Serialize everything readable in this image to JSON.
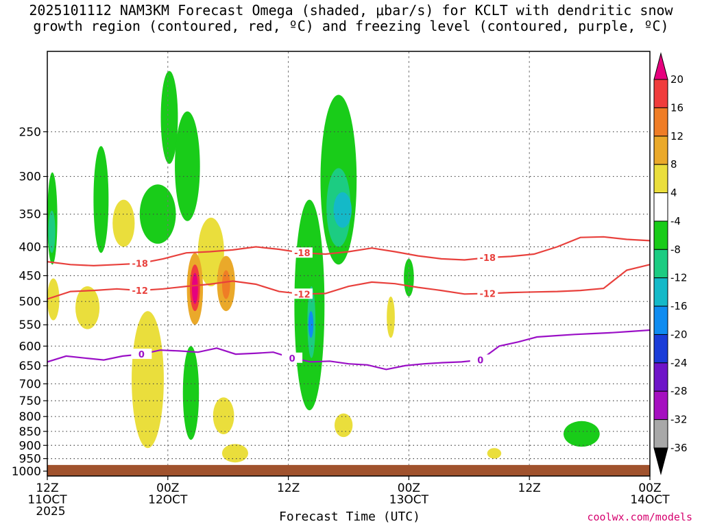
{
  "title": {
    "line1": "2025101112 NAM3KM Forecast Omega (shaded, μbar/s) for KCLT with dendritic snow",
    "line2": "growth region (contoured, red, ºC) and freezing level (contoured, purple, ºC)"
  },
  "credit": "coolwx.com/models",
  "chart_data": {
    "type": "heatmap",
    "title": "2025101112 NAM3KM Forecast Omega (shaded, μbar/s) for KCLT with dendritic snow growth region (contoured, red, ºC) and freezing level (contoured, purple, ºC)",
    "xlabel": "Forecast Time (UTC)",
    "ylabel": "",
    "x_units": "forecast hour",
    "xlim": [
      0,
      60
    ],
    "y_units": "hPa",
    "ylim": [
      1020,
      180
    ],
    "y_scale": "log",
    "y_ticks": [
      250,
      300,
      350,
      400,
      450,
      500,
      550,
      600,
      650,
      700,
      750,
      800,
      850,
      900,
      950,
      1000
    ],
    "x_ticks": [
      {
        "hour": 0,
        "label1": "12Z",
        "label2": "11OCT",
        "label3": "2025"
      },
      {
        "hour": 12,
        "label1": "00Z",
        "label2": "12OCT",
        "label3": ""
      },
      {
        "hour": 24,
        "label1": "12Z",
        "label2": "",
        "label3": ""
      },
      {
        "hour": 36,
        "label1": "00Z",
        "label2": "13OCT",
        "label3": ""
      },
      {
        "hour": 48,
        "label1": "12Z",
        "label2": "",
        "label3": ""
      },
      {
        "hour": 60,
        "label1": "00Z",
        "label2": "14OCT",
        "label3": ""
      }
    ],
    "grid": true,
    "colorbar": {
      "placement": "right",
      "labels": [
        "20",
        "16",
        "12",
        "8",
        "4",
        "-4",
        "-8",
        "-12",
        "-16",
        "-20",
        "-24",
        "-28",
        "-32",
        "-36"
      ],
      "bins": [
        {
          "min": 20,
          "max": null,
          "color": "#e6007e"
        },
        {
          "min": 16,
          "max": 20,
          "color": "#f03c3c"
        },
        {
          "min": 12,
          "max": 16,
          "color": "#ef7d26"
        },
        {
          "min": 8,
          "max": 12,
          "color": "#eaa92a"
        },
        {
          "min": 4,
          "max": 8,
          "color": "#eade3c"
        },
        {
          "min": -4,
          "max": 4,
          "color": "#ffffff"
        },
        {
          "min": -8,
          "max": -4,
          "color": "#19cc19"
        },
        {
          "min": -12,
          "max": -8,
          "color": "#1ccc82"
        },
        {
          "min": -16,
          "max": -12,
          "color": "#14b9c8"
        },
        {
          "min": -20,
          "max": -16,
          "color": "#0f8cf0"
        },
        {
          "min": -24,
          "max": -20,
          "color": "#1a3cd8"
        },
        {
          "min": -28,
          "max": -24,
          "color": "#6e14c8"
        },
        {
          "min": -32,
          "max": -28,
          "color": "#a50fc0"
        },
        {
          "min": -36,
          "max": -32,
          "color": "#a8a8a8"
        },
        {
          "min": null,
          "max": -36,
          "color": "#000000"
        }
      ]
    },
    "shaded_regions": [
      {
        "t0": 0.0,
        "t1": 1.0,
        "p_top": 295,
        "p_bot": 430,
        "omega": -8
      },
      {
        "t0": 0.1,
        "t1": 0.8,
        "p_top": 345,
        "p_bot": 410,
        "omega": -12
      },
      {
        "t0": 0.0,
        "t1": 1.2,
        "p_top": 455,
        "p_bot": 540,
        "omega": 6
      },
      {
        "t0": 2.8,
        "t1": 5.2,
        "p_top": 470,
        "p_bot": 560,
        "omega": 6
      },
      {
        "t0": 4.6,
        "t1": 6.1,
        "p_top": 265,
        "p_bot": 410,
        "omega": -6
      },
      {
        "t0": 6.5,
        "t1": 8.7,
        "p_top": 330,
        "p_bot": 400,
        "omega": 6
      },
      {
        "t0": 9.2,
        "t1": 12.8,
        "p_top": 310,
        "p_bot": 395,
        "omega": -6
      },
      {
        "t0": 11.3,
        "t1": 13.0,
        "p_top": 195,
        "p_bot": 285,
        "omega": -6
      },
      {
        "t0": 12.7,
        "t1": 15.2,
        "p_top": 230,
        "p_bot": 360,
        "omega": -6
      },
      {
        "t0": 15.0,
        "t1": 17.6,
        "p_top": 355,
        "p_bot": 470,
        "omega": 6
      },
      {
        "t0": 13.9,
        "t1": 15.5,
        "p_top": 410,
        "p_bot": 550,
        "omega": 8
      },
      {
        "t0": 14.2,
        "t1": 15.2,
        "p_top": 430,
        "p_bot": 520,
        "omega": 16
      },
      {
        "t0": 14.4,
        "t1": 15.0,
        "p_top": 445,
        "p_bot": 505,
        "omega": 22
      },
      {
        "t0": 16.9,
        "t1": 18.7,
        "p_top": 415,
        "p_bot": 520,
        "omega": 8
      },
      {
        "t0": 17.4,
        "t1": 18.2,
        "p_top": 440,
        "p_bot": 495,
        "omega": 13
      },
      {
        "t0": 8.4,
        "t1": 11.6,
        "p_top": 520,
        "p_bot": 910,
        "omega": 6
      },
      {
        "t0": 13.5,
        "t1": 15.1,
        "p_top": 600,
        "p_bot": 880,
        "omega": -6
      },
      {
        "t0": 16.5,
        "t1": 18.6,
        "p_top": 740,
        "p_bot": 860,
        "omega": 6
      },
      {
        "t0": 17.4,
        "t1": 20.0,
        "p_top": 895,
        "p_bot": 965,
        "omega": 6
      },
      {
        "t0": 25.7,
        "t1": 27.1,
        "p_top": 410,
        "p_bot": 560,
        "omega": -6
      },
      {
        "t0": 27.2,
        "t1": 30.8,
        "p_top": 215,
        "p_bot": 430,
        "omega": -6
      },
      {
        "t0": 24.6,
        "t1": 27.6,
        "p_top": 330,
        "p_bot": 780,
        "omega": -6
      },
      {
        "t0": 25.9,
        "t1": 26.7,
        "p_top": 470,
        "p_bot": 630,
        "omega": -12
      },
      {
        "t0": 26.0,
        "t1": 26.5,
        "p_top": 520,
        "p_bot": 580,
        "omega": -18
      },
      {
        "t0": 27.8,
        "t1": 30.2,
        "p_top": 290,
        "p_bot": 400,
        "omega": -10
      },
      {
        "t0": 28.5,
        "t1": 30.3,
        "p_top": 320,
        "p_bot": 370,
        "omega": -13
      },
      {
        "t0": 28.6,
        "t1": 30.4,
        "p_top": 790,
        "p_bot": 870,
        "omega": 6
      },
      {
        "t0": 33.8,
        "t1": 34.6,
        "p_top": 490,
        "p_bot": 580,
        "omega": 6
      },
      {
        "t0": 35.5,
        "t1": 36.5,
        "p_top": 420,
        "p_bot": 490,
        "omega": -6
      },
      {
        "t0": 51.4,
        "t1": 55.0,
        "p_top": 815,
        "p_bot": 905,
        "omega": -6
      },
      {
        "t0": 43.8,
        "t1": 45.2,
        "p_top": 910,
        "p_bot": 950,
        "omega": 6
      }
    ],
    "dendritic_isotherms": [
      {
        "label": "-18",
        "pressure_hpa": [
          425,
          430,
          432,
          430,
          428,
          420,
          410,
          408,
          405,
          400,
          404,
          410,
          412,
          408,
          402,
          408,
          415,
          420,
          422,
          418,
          416,
          412,
          400,
          385,
          384,
          388,
          390
        ]
      },
      {
        "label": "-12",
        "pressure_hpa": [
          495,
          480,
          478,
          475,
          478,
          475,
          470,
          466,
          460,
          466,
          480,
          485,
          484,
          470,
          462,
          465,
          472,
          478,
          485,
          484,
          482,
          481,
          480,
          478,
          474,
          440,
          430
        ]
      }
    ],
    "freezing_level": {
      "label": "0",
      "pressure_hpa": [
        640,
        625,
        630,
        635,
        625,
        620,
        610,
        612,
        615,
        605,
        620,
        618,
        615,
        630,
        640,
        638,
        645,
        648,
        660,
        650,
        645,
        642,
        640,
        635,
        600,
        590,
        578,
        575,
        572,
        570,
        568,
        565,
        562
      ]
    },
    "ground_pressure_hpa": 975
  }
}
